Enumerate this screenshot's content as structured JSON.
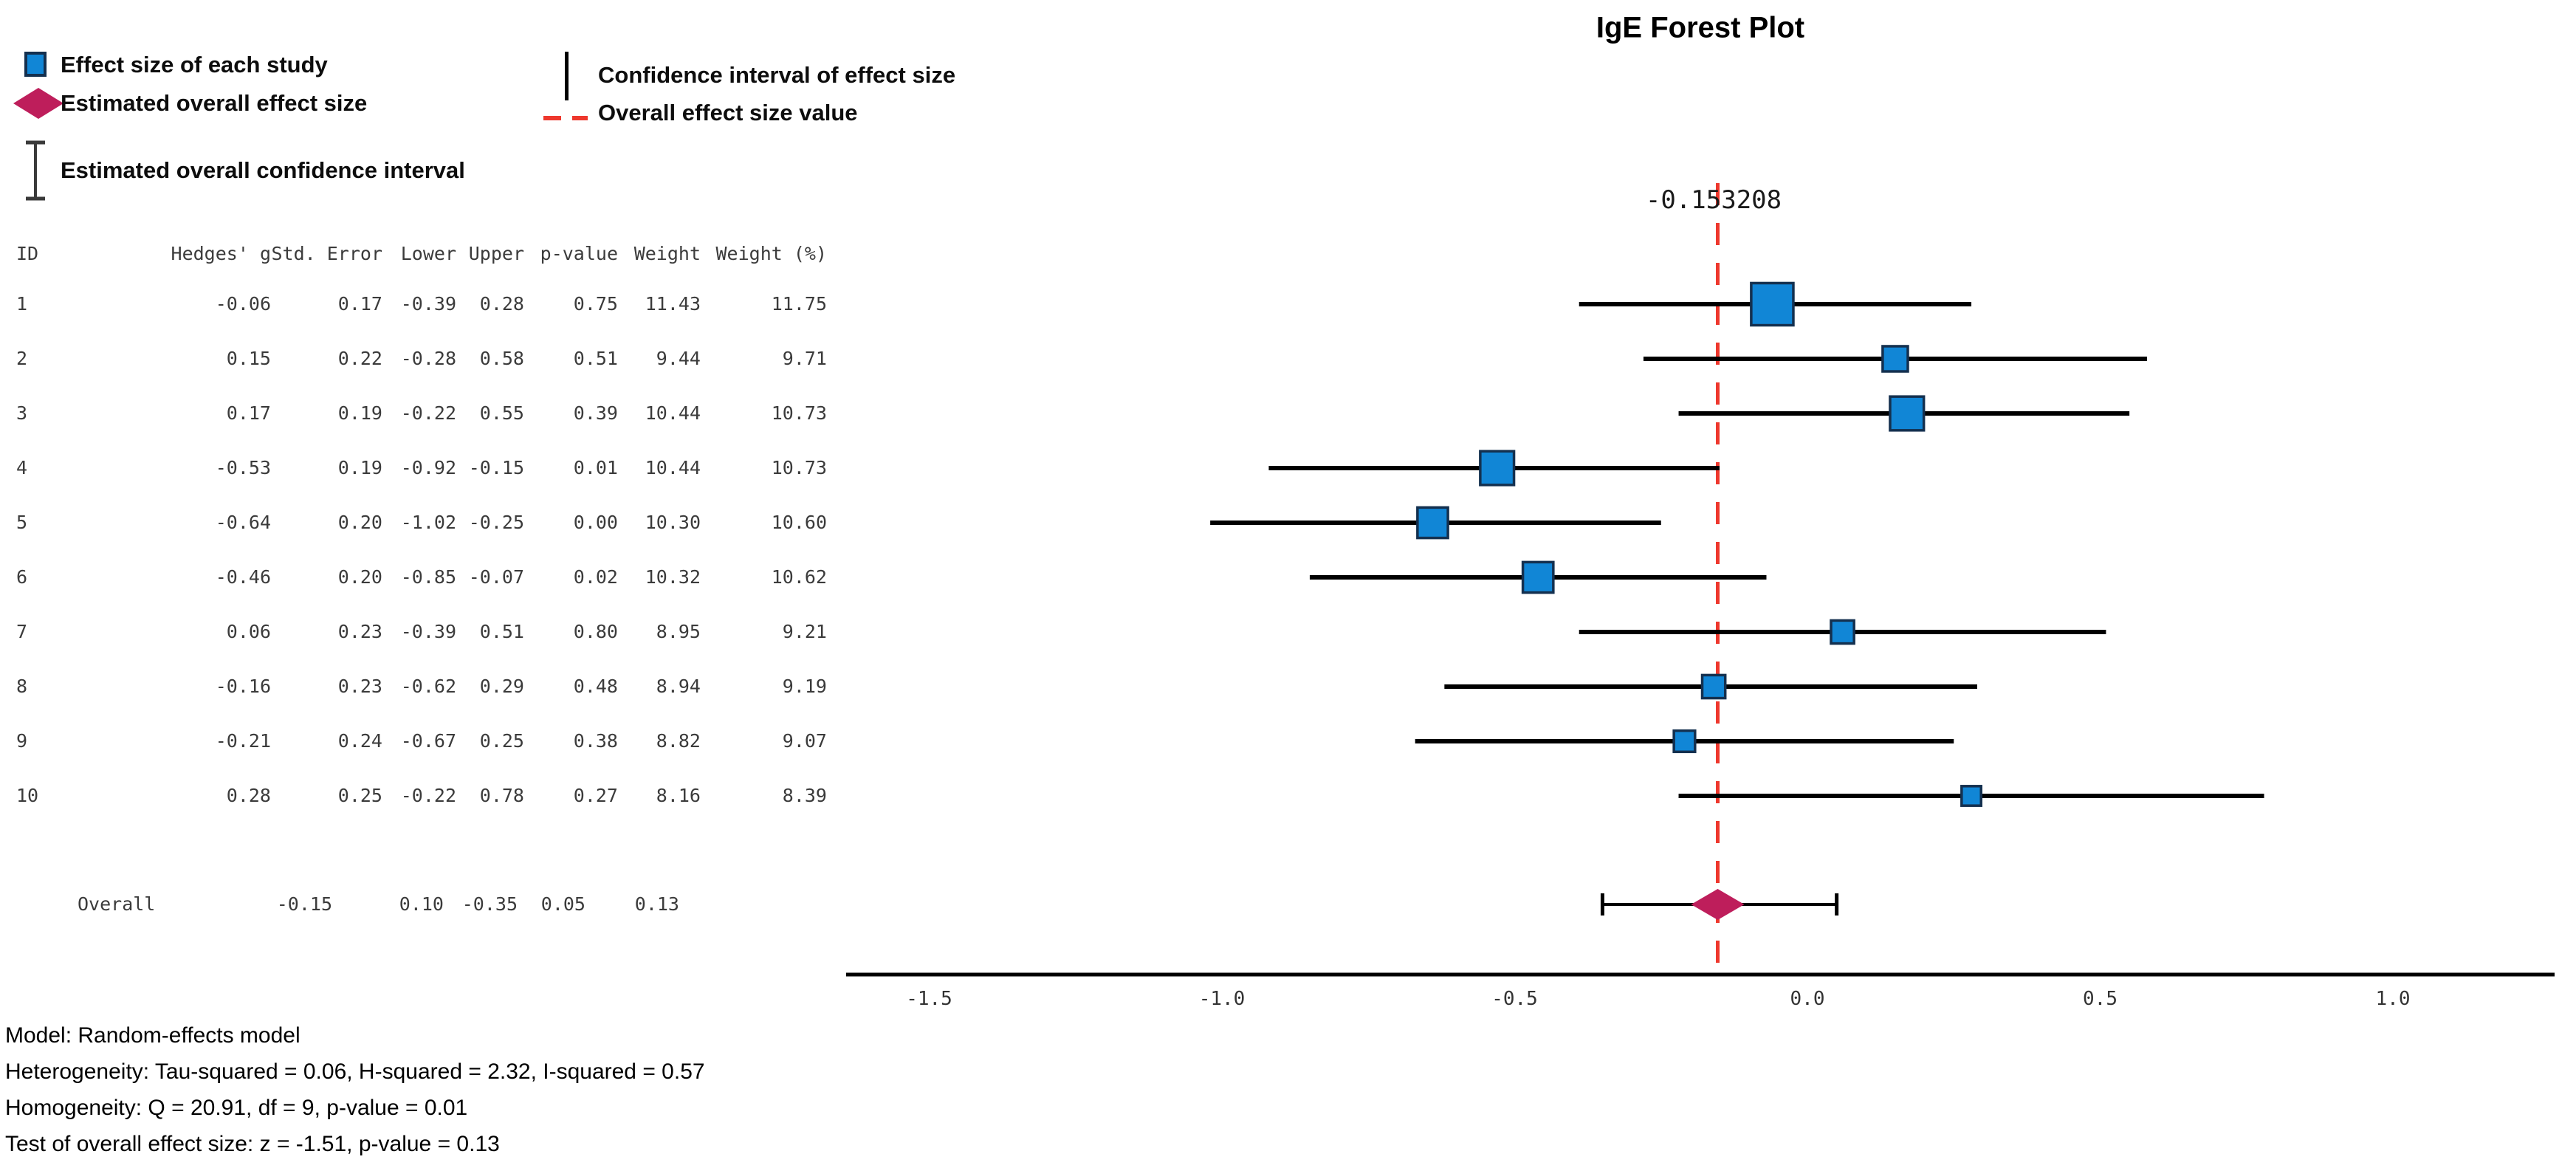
{
  "title": "IgE Forest Plot",
  "colors": {
    "study_square_fill": "#1186d6",
    "study_square_border": "#14304f",
    "overall_diamond": "#be1e5b",
    "overall_effect_line": "#ee382d",
    "ci_line": "#000000",
    "axis": "#000000",
    "table_text": "#3b3b3b"
  },
  "legend": {
    "items": [
      {
        "icon": "study-square-icon",
        "label": "Effect size of each study"
      },
      {
        "icon": "overall-diamond-icon",
        "label": "Estimated overall effect size"
      },
      {
        "icon": "overall-ci-ibeam-icon",
        "label": "Estimated overall confidence interval"
      },
      {
        "icon": "ci-vertical-line-icon",
        "label": "Confidence interval of effect size"
      },
      {
        "icon": "dashed-line-icon",
        "label": "Overall effect size value"
      }
    ]
  },
  "plot": {
    "overall_value_label": "-0.153208"
  },
  "table": {
    "columns": [
      "ID",
      "Hedges' g",
      "Std. Error",
      "Lower",
      "Upper",
      "p-value",
      "Weight",
      "Weight (%)"
    ]
  },
  "axis": {
    "tick_labels": [
      "-1.5",
      "-1.0",
      "-0.5",
      "0.0",
      "0.5",
      "1.0"
    ]
  },
  "footer": {
    "lines": [
      "Model: Random-effects model",
      "Heterogeneity: Tau-squared = 0.06, H-squared = 2.32, I-squared = 0.57",
      "Homogeneity: Q = 20.91, df = 9, p-value = 0.01",
      "Test of overall effect size: z = -1.51, p-value = 0.13"
    ]
  },
  "chart_data": {
    "type": "scatter",
    "subtype": "forest",
    "title": "IgE Forest Plot",
    "xlabel": "",
    "ylabel": "",
    "x_axis": {
      "ticks": [
        -1.5,
        -1.0,
        -0.5,
        0.0,
        0.5,
        1.0
      ],
      "range": [
        -1.64,
        1.28
      ]
    },
    "grid": false,
    "legend_position": "top-left",
    "overall_effect_value": -0.153208,
    "studies": [
      {
        "id": "1",
        "g": -0.06,
        "se": 0.17,
        "lower": -0.39,
        "upper": 0.28,
        "p": 0.75,
        "weight": 11.43,
        "weight_pct": 11.75
      },
      {
        "id": "2",
        "g": 0.15,
        "se": 0.22,
        "lower": -0.28,
        "upper": 0.58,
        "p": 0.51,
        "weight": 9.44,
        "weight_pct": 9.71
      },
      {
        "id": "3",
        "g": 0.17,
        "se": 0.19,
        "lower": -0.22,
        "upper": 0.55,
        "p": 0.39,
        "weight": 10.44,
        "weight_pct": 10.73
      },
      {
        "id": "4",
        "g": -0.53,
        "se": 0.19,
        "lower": -0.92,
        "upper": -0.15,
        "p": 0.01,
        "weight": 10.44,
        "weight_pct": 10.73
      },
      {
        "id": "5",
        "g": -0.64,
        "se": 0.2,
        "lower": -1.02,
        "upper": -0.25,
        "p": 0.0,
        "weight": 10.3,
        "weight_pct": 10.6
      },
      {
        "id": "6",
        "g": -0.46,
        "se": 0.2,
        "lower": -0.85,
        "upper": -0.07,
        "p": 0.02,
        "weight": 10.32,
        "weight_pct": 10.62
      },
      {
        "id": "7",
        "g": 0.06,
        "se": 0.23,
        "lower": -0.39,
        "upper": 0.51,
        "p": 0.8,
        "weight": 8.95,
        "weight_pct": 9.21
      },
      {
        "id": "8",
        "g": -0.16,
        "se": 0.23,
        "lower": -0.62,
        "upper": 0.29,
        "p": 0.48,
        "weight": 8.94,
        "weight_pct": 9.19
      },
      {
        "id": "9",
        "g": -0.21,
        "se": 0.24,
        "lower": -0.67,
        "upper": 0.25,
        "p": 0.38,
        "weight": 8.82,
        "weight_pct": 9.07
      },
      {
        "id": "10",
        "g": 0.28,
        "se": 0.25,
        "lower": -0.22,
        "upper": 0.78,
        "p": 0.27,
        "weight": 8.16,
        "weight_pct": 8.39
      }
    ],
    "overall": {
      "id": "Overall",
      "g": -0.15,
      "se": 0.1,
      "lower": -0.35,
      "upper": 0.05,
      "p": 0.13
    },
    "model": {
      "name": "Random-effects model",
      "tau_squared": 0.06,
      "h_squared": 2.32,
      "i_squared": 0.57,
      "q": 20.91,
      "df": 9,
      "q_p_value": 0.01,
      "z": -1.51,
      "z_p_value": 0.13
    }
  }
}
